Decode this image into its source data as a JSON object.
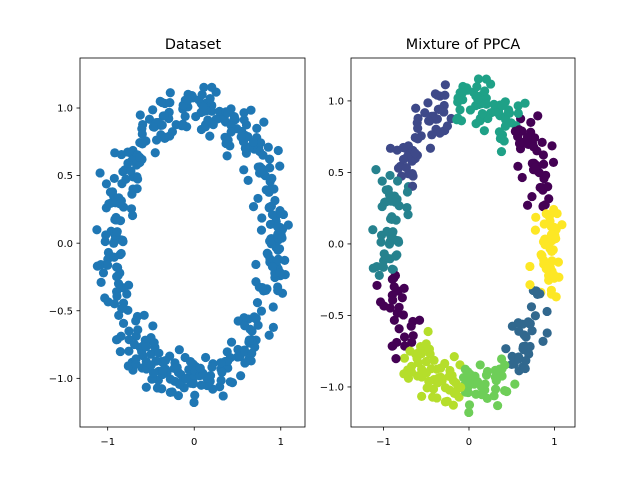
{
  "chart_data": [
    {
      "type": "scatter",
      "title": "Dataset",
      "xlabel": "",
      "ylabel": "",
      "xlim": [
        -1.32,
        1.28
      ],
      "ylim": [
        -1.36,
        1.37
      ],
      "xticks": [
        -1,
        0,
        1
      ],
      "yticks": [
        -1.0,
        -0.5,
        0.0,
        0.5,
        1.0
      ],
      "xtick_labels": [
        "−1",
        "0",
        "1"
      ],
      "ytick_labels": [
        "−1.0",
        "−0.5",
        "0.0",
        "0.5",
        "1.0"
      ],
      "ring": {
        "center_x": 0.0,
        "center_y": 0.0,
        "radius_x": 0.95,
        "radius_y": 1.0,
        "noise": 0.1,
        "n_points": 420
      },
      "series": [
        {
          "color": "#1f77b4"
        }
      ]
    },
    {
      "type": "scatter",
      "title": "Mixture of PPCA",
      "xlabel": "",
      "ylabel": "",
      "xlim": [
        -1.38,
        1.24
      ],
      "ylim": [
        -1.28,
        1.3
      ],
      "xticks": [
        -1,
        0,
        1
      ],
      "yticks": [
        -1.0,
        -0.5,
        0.0,
        0.5,
        1.0
      ],
      "xtick_labels": [
        "−1",
        "0",
        "1"
      ],
      "ytick_labels": [
        "−1.0",
        "−0.5",
        "0.0",
        "0.5",
        "1.0"
      ],
      "ring": {
        "center_x": 0.0,
        "center_y": 0.0,
        "radius_x": 0.95,
        "radius_y": 1.0,
        "noise": 0.1,
        "n_points": 420
      },
      "clusters": [
        {
          "angle_center_deg": 207,
          "color": "#440154"
        },
        {
          "angle_center_deg": 122,
          "color": "#3e4989"
        },
        {
          "angle_center_deg": 32,
          "color": "#440154"
        },
        {
          "angle_center_deg": 315,
          "color": "#31688e"
        },
        {
          "angle_center_deg": 178,
          "color": "#26828e"
        },
        {
          "angle_center_deg": 80,
          "color": "#1fa187"
        },
        {
          "angle_center_deg": 245,
          "color": "#b5de2b"
        },
        {
          "angle_center_deg": 285,
          "color": "#6ece58"
        },
        {
          "angle_center_deg": 0,
          "color": "#fde725"
        }
      ]
    }
  ]
}
